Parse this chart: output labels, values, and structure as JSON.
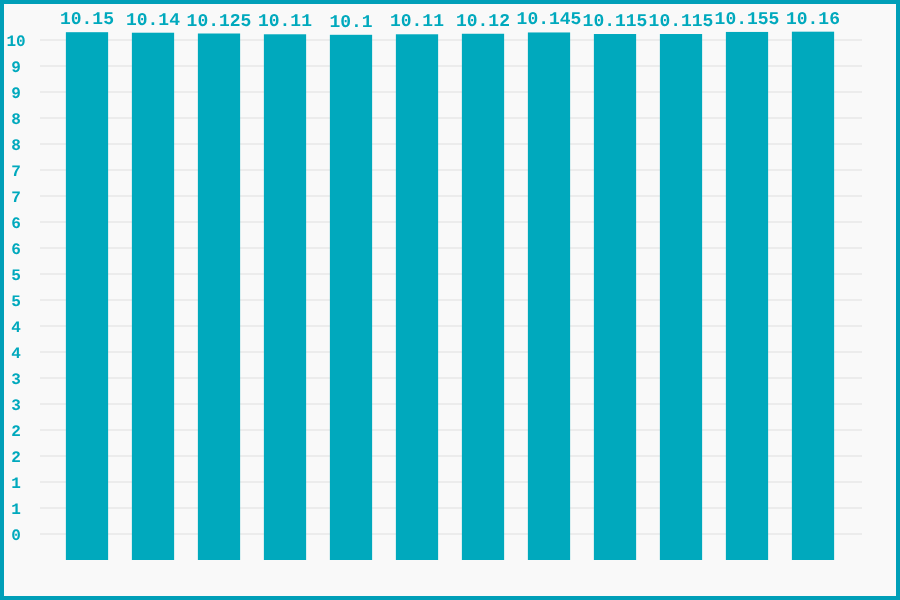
{
  "chart_data": {
    "type": "bar",
    "categories": [
      null,
      null,
      null,
      null,
      null,
      null,
      null,
      null,
      null,
      null,
      null,
      null
    ],
    "values": [
      10.15,
      10.14,
      10.125,
      10.11,
      10.1,
      10.11,
      10.12,
      10.145,
      10.115,
      10.115,
      10.155,
      10.16
    ],
    "color": "#00a9bd",
    "data_labels": true,
    "grid": "y",
    "ylim": [
      0,
      10.25
    ],
    "yticks": [
      {
        "value": 0.5,
        "label": "0"
      },
      {
        "value": 1,
        "label": "1"
      },
      {
        "value": 1.5,
        "label": "1"
      },
      {
        "value": 2,
        "label": "2"
      },
      {
        "value": 2.5,
        "label": "2"
      },
      {
        "value": 3,
        "label": "3"
      },
      {
        "value": 3.5,
        "label": "3"
      },
      {
        "value": 4,
        "label": "4"
      },
      {
        "value": 4.5,
        "label": "4"
      },
      {
        "value": 5,
        "label": "5"
      },
      {
        "value": 5.5,
        "label": "5"
      },
      {
        "value": 6,
        "label": "6"
      },
      {
        "value": 6.5,
        "label": "6"
      },
      {
        "value": 7,
        "label": "7"
      },
      {
        "value": 7.5,
        "label": "7"
      },
      {
        "value": 8,
        "label": "8"
      },
      {
        "value": 8.5,
        "label": "8"
      },
      {
        "value": 9,
        "label": "9"
      },
      {
        "value": 9.5,
        "label": "9"
      },
      {
        "value": 10,
        "label": "10"
      }
    ]
  }
}
